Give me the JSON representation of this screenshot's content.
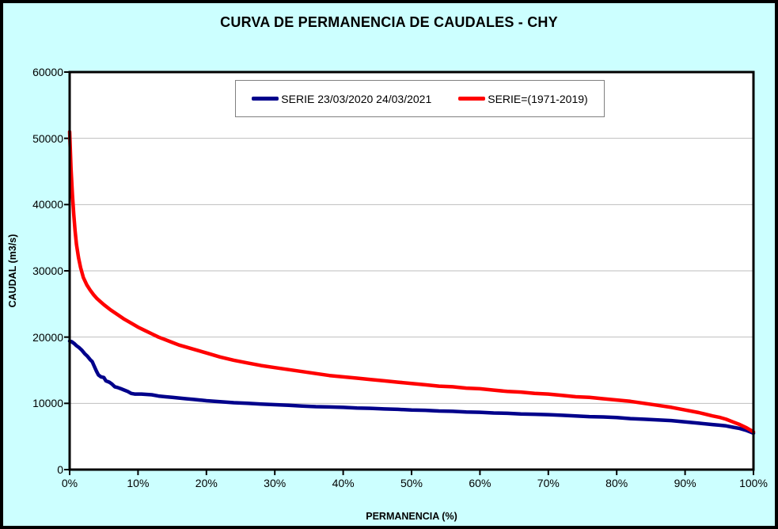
{
  "colors": {
    "background": "#CCFFFF",
    "plot_background": "#FFFFFF",
    "gridline": "#BEBEBE",
    "axis": "#000000",
    "legend_border": "#808080",
    "series_blue": "#00008B",
    "series_red": "#FF0000"
  },
  "chart_data": {
    "type": "line",
    "title": "CURVA DE PERMANENCIA DE CAUDALES - CHY",
    "xlabel": "PERMANENCIA (%)",
    "ylabel": "CAUDAL (m3/s)",
    "xlim": [
      0,
      100
    ],
    "ylim": [
      0,
      60000
    ],
    "grid": "horizontal-only",
    "legend_position": "top-center-inside",
    "x_ticks": [
      {
        "value": 0,
        "label": "0%"
      },
      {
        "value": 10,
        "label": "10%"
      },
      {
        "value": 20,
        "label": "20%"
      },
      {
        "value": 30,
        "label": "30%"
      },
      {
        "value": 40,
        "label": "40%"
      },
      {
        "value": 50,
        "label": "50%"
      },
      {
        "value": 60,
        "label": "60%"
      },
      {
        "value": 70,
        "label": "70%"
      },
      {
        "value": 80,
        "label": "80%"
      },
      {
        "value": 90,
        "label": "90%"
      },
      {
        "value": 100,
        "label": "100%"
      }
    ],
    "y_ticks": [
      {
        "value": 0,
        "label": "0"
      },
      {
        "value": 10000,
        "label": "10000"
      },
      {
        "value": 20000,
        "label": "20000"
      },
      {
        "value": 30000,
        "label": "30000"
      },
      {
        "value": 40000,
        "label": "40000"
      },
      {
        "value": 50000,
        "label": "50000"
      },
      {
        "value": 60000,
        "label": "60000"
      }
    ],
    "series": [
      {
        "name": "SERIE 23/03/2020 24/03/2021",
        "color": "#00008B",
        "points": [
          [
            0,
            19400
          ],
          [
            0.3,
            19300
          ],
          [
            0.7,
            19000
          ],
          [
            1,
            18700
          ],
          [
            1.4,
            18400
          ],
          [
            1.8,
            18000
          ],
          [
            2.2,
            17500
          ],
          [
            2.6,
            17100
          ],
          [
            3,
            16600
          ],
          [
            3.3,
            16300
          ],
          [
            3.6,
            15600
          ],
          [
            3.9,
            14900
          ],
          [
            4.2,
            14300
          ],
          [
            4.6,
            14000
          ],
          [
            5,
            13900
          ],
          [
            5.3,
            13400
          ],
          [
            5.8,
            13200
          ],
          [
            6.2,
            12900
          ],
          [
            6.6,
            12500
          ],
          [
            7,
            12400
          ],
          [
            7.5,
            12200
          ],
          [
            8,
            12000
          ],
          [
            8.5,
            11800
          ],
          [
            9,
            11500
          ],
          [
            9.5,
            11400
          ],
          [
            10.5,
            11400
          ],
          [
            12,
            11300
          ],
          [
            13,
            11100
          ],
          [
            14,
            11000
          ],
          [
            15,
            10900
          ],
          [
            16,
            10800
          ],
          [
            17,
            10700
          ],
          [
            18,
            10600
          ],
          [
            19,
            10500
          ],
          [
            20,
            10400
          ],
          [
            22,
            10250
          ],
          [
            24,
            10100
          ],
          [
            26,
            10000
          ],
          [
            28,
            9900
          ],
          [
            30,
            9800
          ],
          [
            32,
            9700
          ],
          [
            34,
            9600
          ],
          [
            36,
            9500
          ],
          [
            38,
            9450
          ],
          [
            40,
            9400
          ],
          [
            42,
            9300
          ],
          [
            44,
            9250
          ],
          [
            46,
            9150
          ],
          [
            48,
            9100
          ],
          [
            50,
            9000
          ],
          [
            52,
            8950
          ],
          [
            54,
            8850
          ],
          [
            56,
            8800
          ],
          [
            58,
            8700
          ],
          [
            60,
            8650
          ],
          [
            62,
            8550
          ],
          [
            64,
            8500
          ],
          [
            66,
            8400
          ],
          [
            68,
            8350
          ],
          [
            70,
            8300
          ],
          [
            72,
            8200
          ],
          [
            74,
            8100
          ],
          [
            76,
            8000
          ],
          [
            78,
            7950
          ],
          [
            80,
            7850
          ],
          [
            82,
            7700
          ],
          [
            84,
            7600
          ],
          [
            86,
            7500
          ],
          [
            88,
            7400
          ],
          [
            90,
            7200
          ],
          [
            92,
            7000
          ],
          [
            94,
            6800
          ],
          [
            95,
            6700
          ],
          [
            96,
            6600
          ],
          [
            97,
            6400
          ],
          [
            98,
            6200
          ],
          [
            99,
            5900
          ],
          [
            99.5,
            5700
          ],
          [
            100,
            5500
          ]
        ]
      },
      {
        "name": "SERIE=(1971-2019)",
        "color": "#FF0000",
        "points": [
          [
            0,
            51000
          ],
          [
            0.2,
            45500
          ],
          [
            0.4,
            41500
          ],
          [
            0.6,
            38500
          ],
          [
            0.8,
            36000
          ],
          [
            1,
            34000
          ],
          [
            1.3,
            32000
          ],
          [
            1.6,
            30500
          ],
          [
            2,
            29000
          ],
          [
            2.5,
            27900
          ],
          [
            3,
            27100
          ],
          [
            3.5,
            26400
          ],
          [
            4,
            25800
          ],
          [
            5,
            24900
          ],
          [
            6,
            24100
          ],
          [
            7,
            23400
          ],
          [
            8,
            22700
          ],
          [
            9,
            22100
          ],
          [
            10,
            21500
          ],
          [
            11,
            21000
          ],
          [
            12,
            20500
          ],
          [
            13,
            20000
          ],
          [
            14,
            19600
          ],
          [
            15,
            19200
          ],
          [
            16,
            18800
          ],
          [
            17,
            18500
          ],
          [
            18,
            18200
          ],
          [
            19,
            17900
          ],
          [
            20,
            17600
          ],
          [
            22,
            17000
          ],
          [
            24,
            16500
          ],
          [
            26,
            16100
          ],
          [
            28,
            15700
          ],
          [
            30,
            15400
          ],
          [
            32,
            15100
          ],
          [
            34,
            14800
          ],
          [
            36,
            14500
          ],
          [
            38,
            14200
          ],
          [
            40,
            14000
          ],
          [
            42,
            13800
          ],
          [
            44,
            13600
          ],
          [
            46,
            13400
          ],
          [
            48,
            13200
          ],
          [
            50,
            13000
          ],
          [
            52,
            12800
          ],
          [
            54,
            12600
          ],
          [
            56,
            12500
          ],
          [
            58,
            12300
          ],
          [
            60,
            12200
          ],
          [
            62,
            12000
          ],
          [
            64,
            11800
          ],
          [
            66,
            11700
          ],
          [
            68,
            11500
          ],
          [
            70,
            11400
          ],
          [
            72,
            11200
          ],
          [
            74,
            11000
          ],
          [
            76,
            10900
          ],
          [
            78,
            10700
          ],
          [
            80,
            10500
          ],
          [
            82,
            10300
          ],
          [
            84,
            10000
          ],
          [
            86,
            9700
          ],
          [
            88,
            9400
          ],
          [
            90,
            9000
          ],
          [
            92,
            8600
          ],
          [
            94,
            8100
          ],
          [
            95,
            7900
          ],
          [
            96,
            7600
          ],
          [
            97,
            7200
          ],
          [
            98,
            6800
          ],
          [
            99,
            6300
          ],
          [
            99.5,
            6000
          ],
          [
            100,
            5700
          ]
        ]
      }
    ]
  }
}
